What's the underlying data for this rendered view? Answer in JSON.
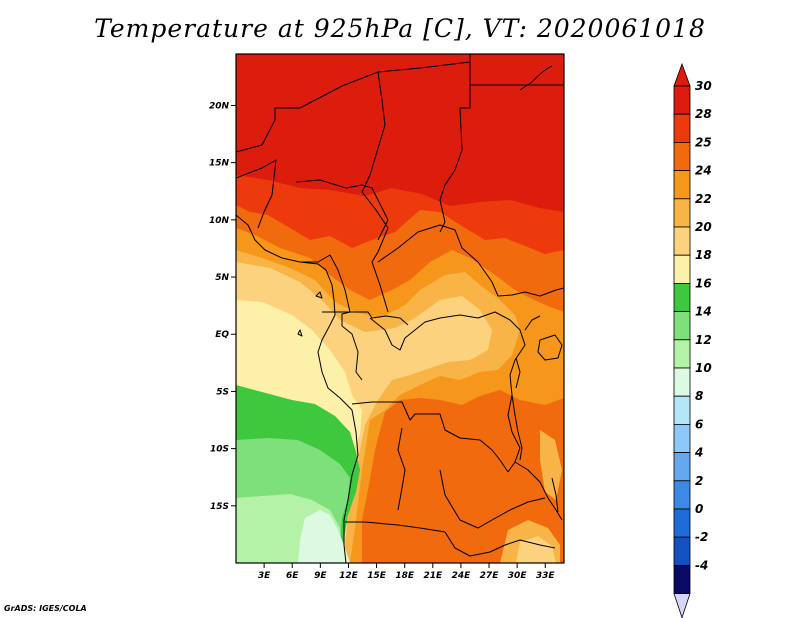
{
  "title": "Temperature at 925hPa [C], VT: 2020061018",
  "credit": "GrADS: IGES/COLA",
  "map": {
    "lon_range_deg_east": [
      0,
      35
    ],
    "lat_range_deg_north": [
      -20,
      24.5
    ],
    "lat_ticks": [
      {
        "value": 20,
        "label": "20N"
      },
      {
        "value": 15,
        "label": "15N"
      },
      {
        "value": 10,
        "label": "10N"
      },
      {
        "value": 5,
        "label": "5N"
      },
      {
        "value": 0,
        "label": "EQ"
      },
      {
        "value": -5,
        "label": "5S"
      },
      {
        "value": -10,
        "label": "10S"
      },
      {
        "value": -15,
        "label": "15S"
      }
    ],
    "lon_ticks": [
      {
        "value": 3,
        "label": "3E"
      },
      {
        "value": 6,
        "label": "6E"
      },
      {
        "value": 9,
        "label": "9E"
      },
      {
        "value": 12,
        "label": "12E"
      },
      {
        "value": 15,
        "label": "15E"
      },
      {
        "value": 18,
        "label": "18E"
      },
      {
        "value": 21,
        "label": "21E"
      },
      {
        "value": 24,
        "label": "24E"
      },
      {
        "value": 27,
        "label": "27E"
      },
      {
        "value": 30,
        "label": "30E"
      },
      {
        "value": 33,
        "label": "33E"
      }
    ]
  },
  "colorbar": {
    "levels": [
      {
        "label": "30",
        "color": "#dc1c0c"
      },
      {
        "label": "28",
        "color": "#ec3a0c"
      },
      {
        "label": "25",
        "color": "#f26a0e"
      },
      {
        "label": "24",
        "color": "#f6961a"
      },
      {
        "label": "22",
        "color": "#f8b446"
      },
      {
        "label": "20",
        "color": "#fcd27e"
      },
      {
        "label": "18",
        "color": "#fdf0a8"
      },
      {
        "label": "16",
        "color": "#3ec83e"
      },
      {
        "label": "14",
        "color": "#7ee07a"
      },
      {
        "label": "12",
        "color": "#b4f2a8"
      },
      {
        "label": "10",
        "color": "#dcfae2"
      },
      {
        "label": "8",
        "color": "#b4e6fa"
      },
      {
        "label": "6",
        "color": "#8cc8f8"
      },
      {
        "label": "4",
        "color": "#64a8f0"
      },
      {
        "label": "2",
        "color": "#3c8ae6"
      },
      {
        "label": "0",
        "color": "#1e6cd8"
      },
      {
        "label": "-2",
        "color": "#1450be"
      },
      {
        "label": "-4",
        "color": "#0a2c96"
      }
    ],
    "over_color": "#dc1c0c",
    "under_color": "#d6d6fa",
    "bottom_block_color": "#0a0a64"
  }
}
